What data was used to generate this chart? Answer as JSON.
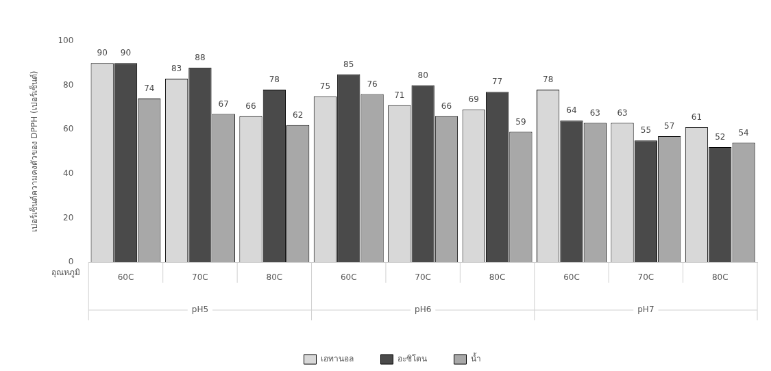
{
  "chart_data": {
    "type": "bar",
    "ylabel": "เปอร์เซ็นต์ความคงตัวของ DPPH (เปอร์เซ็นต์)",
    "xlabel": "อุณหภูมิ",
    "categories": [
      "60C",
      "70C",
      "80C",
      "60C",
      "70C",
      "80C",
      "60C",
      "70C",
      "80C"
    ],
    "series": [
      {
        "name": "เอทานอล",
        "color": "#d8d8d8",
        "values": [
          90,
          83,
          66,
          75,
          71,
          69,
          78,
          63,
          61
        ]
      },
      {
        "name": "อะซิโตน",
        "color": "#4a4a4a",
        "values": [
          90,
          88,
          78,
          85,
          80,
          77,
          64,
          55,
          52
        ]
      },
      {
        "name": "น้ำ",
        "color": "#a8a8a8",
        "values": [
          74,
          67,
          62,
          76,
          66,
          59,
          63,
          57,
          54
        ]
      }
    ],
    "annotations": [
      "pH5",
      "pH6",
      "pH7"
    ],
    "ylim": [
      0,
      100
    ],
    "yticks": [
      0,
      20,
      40,
      60,
      80,
      100
    ],
    "grid": false,
    "legend": "bottom",
    "data_labels": true
  }
}
